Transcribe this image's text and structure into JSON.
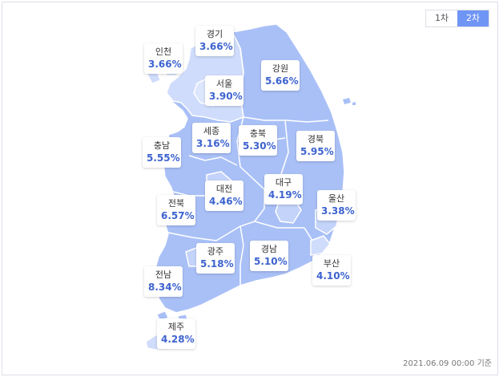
{
  "tabs": [
    {
      "label": "1차",
      "active": false
    },
    {
      "label": "2차",
      "active": true
    }
  ],
  "colors": {
    "accent": "#6f95f5",
    "value_text": "#3d63cf",
    "land_dark": "#a9c0f7",
    "land_light": "#cfdcfb",
    "land_lighter": "#dce6fc"
  },
  "regions": [
    {
      "name": "인천",
      "value": "3.66%"
    },
    {
      "name": "경기",
      "value": "3.66%"
    },
    {
      "name": "서울",
      "value": "3.90%"
    },
    {
      "name": "강원",
      "value": "5.66%"
    },
    {
      "name": "세종",
      "value": "3.16%"
    },
    {
      "name": "충북",
      "value": "5.30%"
    },
    {
      "name": "경북",
      "value": "5.95%"
    },
    {
      "name": "충남",
      "value": "5.55%"
    },
    {
      "name": "대전",
      "value": "4.46%"
    },
    {
      "name": "대구",
      "value": "4.19%"
    },
    {
      "name": "울산",
      "value": "3.38%"
    },
    {
      "name": "전북",
      "value": "6.57%"
    },
    {
      "name": "광주",
      "value": "5.18%"
    },
    {
      "name": "경남",
      "value": "5.10%"
    },
    {
      "name": "부산",
      "value": "4.10%"
    },
    {
      "name": "전남",
      "value": "8.34%"
    },
    {
      "name": "제주",
      "value": "4.28%"
    }
  ],
  "footer": "2021.06.09 00:00 기준"
}
